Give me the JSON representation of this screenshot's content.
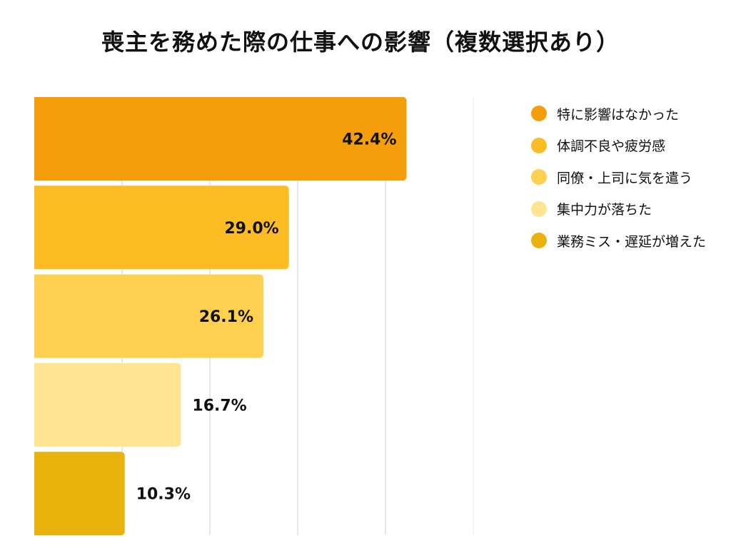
{
  "chart_data": {
    "type": "bar",
    "orientation": "horizontal",
    "title": "喪主を務めた際の仕事への影響（複数選択あり）",
    "categories": [
      "特に影響はなかった",
      "体調不良や疲労感",
      "同僚・上司に気を遣う",
      "集中力が落ちた",
      "業務ミス・遅延が増えた"
    ],
    "values": [
      42.4,
      29.0,
      26.1,
      16.7,
      10.3
    ],
    "data_labels": [
      "42.4%",
      "29.0%",
      "26.1%",
      "16.7%",
      "10.3%"
    ],
    "colors": [
      "#f59e0b",
      "#fbbc24",
      "#fdd04f",
      "#fee592",
      "#eab20c"
    ],
    "xlim": [
      0,
      50
    ],
    "grid": true,
    "legend_position": "right",
    "xlabel": "",
    "ylabel": ""
  }
}
